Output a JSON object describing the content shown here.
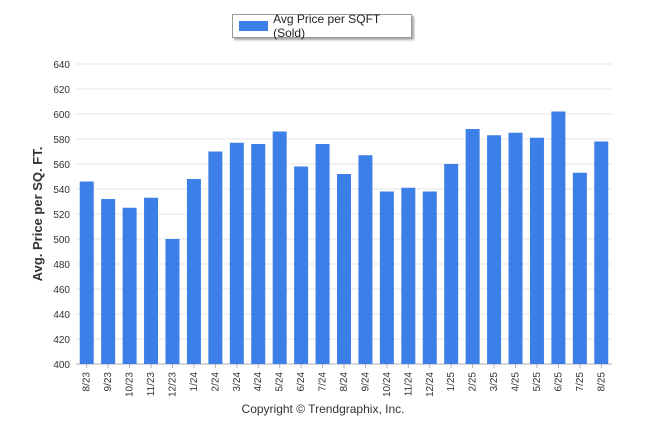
{
  "colors": {
    "bar": "#3d7fe8",
    "grid": "#e6e6e6",
    "axis": "#b0b0b0",
    "text": "#333333"
  },
  "legend": {
    "label": "Avg Price per SQFT (Sold)"
  },
  "credit": "Copyright © Trendgraphix, Inc.",
  "chart_data": {
    "type": "bar",
    "title": "",
    "xlabel": "",
    "ylabel": "Avg. Price per SQ. FT.",
    "ylim": [
      400,
      640
    ],
    "yticks": [
      400,
      420,
      440,
      460,
      480,
      500,
      520,
      540,
      560,
      580,
      600,
      620,
      640
    ],
    "grid": true,
    "legend_position": "top-center",
    "categories": [
      "8/23",
      "9/23",
      "10/23",
      "11/23",
      "12/23",
      "1/24",
      "2/24",
      "3/24",
      "4/24",
      "5/24",
      "6/24",
      "7/24",
      "8/24",
      "9/24",
      "10/24",
      "11/24",
      "12/24",
      "1/25",
      "2/25",
      "3/25",
      "4/25",
      "5/25",
      "6/25",
      "7/25",
      "8/25"
    ],
    "series": [
      {
        "name": "Avg Price per SQFT (Sold)",
        "values": [
          546,
          532,
          525,
          533,
          500,
          548,
          570,
          577,
          576,
          586,
          558,
          576,
          552,
          567,
          538,
          541,
          538,
          560,
          588,
          583,
          585,
          581,
          602,
          553,
          578
        ]
      }
    ]
  }
}
